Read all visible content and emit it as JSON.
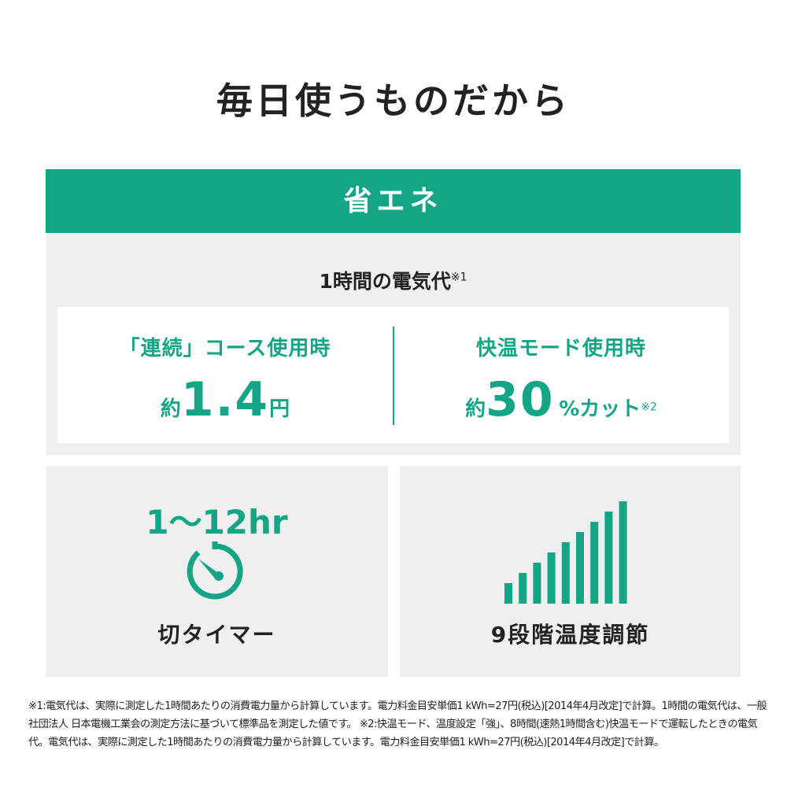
{
  "title": "毎日使うものだから",
  "banner": "省エネ",
  "cost": {
    "title": "1時間の電気代",
    "title_note": "※1",
    "left": {
      "label": "「連続」コース使用時",
      "prefix": "約",
      "value": "1.4",
      "unit": "円"
    },
    "right": {
      "label": "快温モード使用時",
      "prefix": "約",
      "value": "30",
      "unit": "%カット",
      "note": "※2"
    }
  },
  "timer": {
    "range": "1〜12hr",
    "label": "切タイマー",
    "icon": "timer-icon"
  },
  "temperature": {
    "label": "9段階温度調節",
    "levels": 9,
    "icon": "signal-bars-icon"
  },
  "colors": {
    "accent": "#14a586",
    "panel": "#efefef"
  },
  "footnote": "※1:電気代は、実際に測定した1時間あたりの消費電力量から計算しています。電力料金目安単価1 kWh=27円(税込)[2014年4月改定]で計算。1時間の電気代は、一般社団法人 日本電機工業会の測定方法に基づいて標準品を測定した値です。 ※2:快温モード、温度設定「強」、8時間(速熱1時間含む)快温モードで運転したときの電気代。電気代は、実際に測定した1時間あたりの消費電力量から計算しています。電力料金目安単価1 kWh=27円(税込)[2014年4月改定]で計算。"
}
